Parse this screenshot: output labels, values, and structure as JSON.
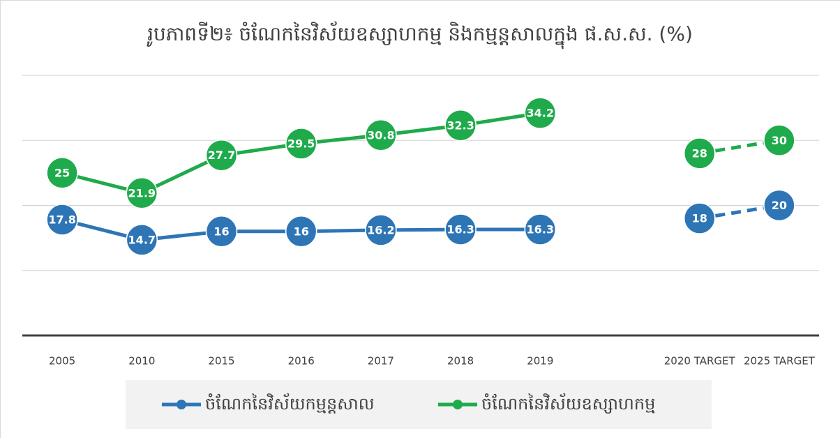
{
  "chart_data": {
    "type": "line",
    "title": "រូបភាពទី២៖ ចំណែកនៃវិស័យឧស្សាហកម្ម និងកម្មន្តសាលក្នុង ផ.ស.ស. (%)",
    "categories": [
      "2005",
      "2010",
      "2015",
      "2016",
      "2017",
      "2018",
      "2019",
      null,
      "2020 TARGET",
      "2025 TARGET"
    ],
    "series": [
      {
        "name": "ចំណែកនៃវិស័យកម្មន្តសាល",
        "color": "#2e75b6",
        "values": [
          17.8,
          14.7,
          16,
          16,
          16.2,
          16.3,
          16.3,
          null,
          18,
          20
        ],
        "line_styles": [
          "solid",
          "dashed"
        ]
      },
      {
        "name": "ចំណែកនៃវិស័យឧស្សាហកម្ម",
        "color": "#1faa4b",
        "values": [
          25,
          21.9,
          27.7,
          29.5,
          30.8,
          32.3,
          34.2,
          null,
          28,
          30
        ],
        "line_styles": [
          "solid",
          "dashed"
        ]
      }
    ],
    "ylim": [
      0,
      40
    ],
    "yticks": [
      0,
      10,
      20,
      30,
      40
    ],
    "grid": true,
    "legend": "bottom"
  }
}
